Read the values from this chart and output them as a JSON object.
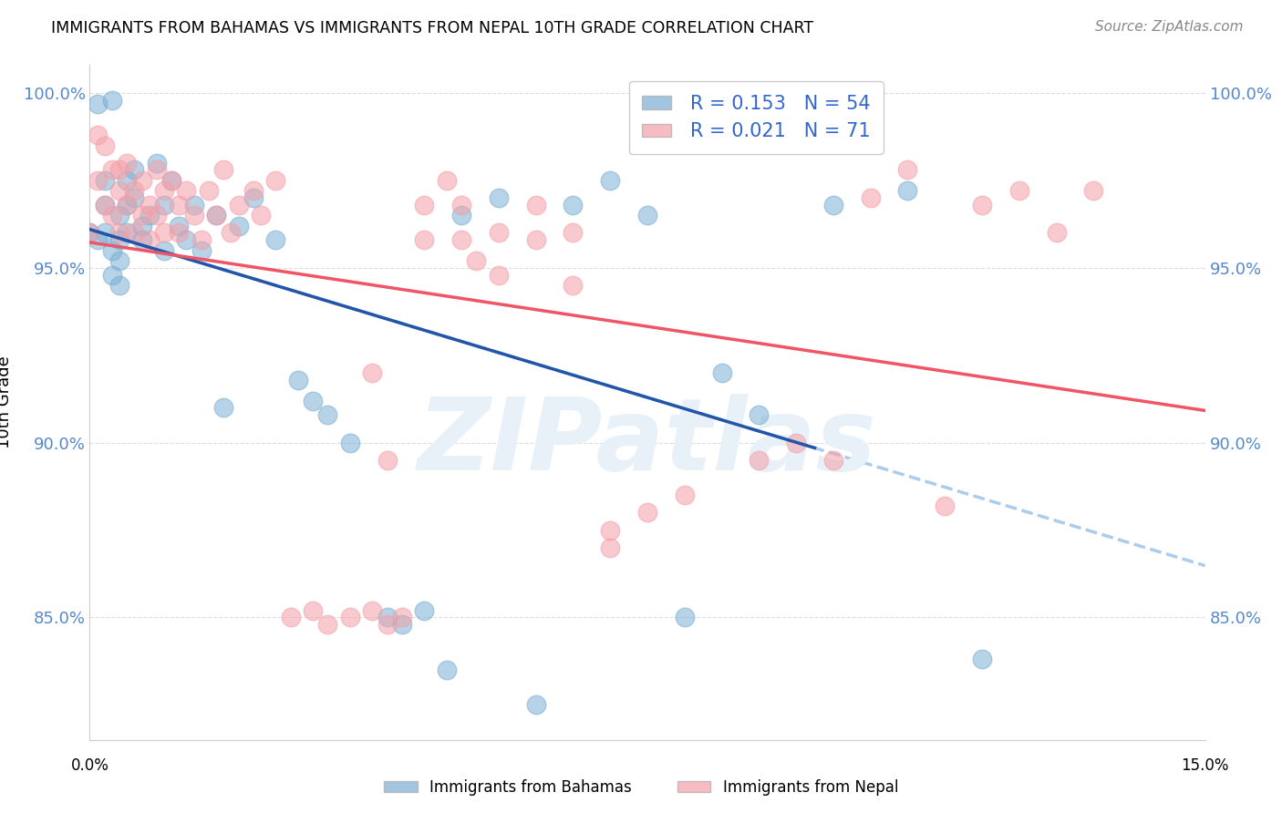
{
  "title": "IMMIGRANTS FROM BAHAMAS VS IMMIGRANTS FROM NEPAL 10TH GRADE CORRELATION CHART",
  "source": "Source: ZipAtlas.com",
  "ylabel": "10th Grade",
  "ytick_labels": [
    "100.0%",
    "95.0%",
    "90.0%",
    "85.0%"
  ],
  "ytick_values": [
    1.0,
    0.95,
    0.9,
    0.85
  ],
  "xlim": [
    0.0,
    0.15
  ],
  "ylim": [
    0.815,
    1.008
  ],
  "legend_blue_r": "R = 0.153",
  "legend_blue_n": "N = 54",
  "legend_pink_r": "R = 0.021",
  "legend_pink_n": "N = 71",
  "blue_color": "#7BAFD4",
  "pink_color": "#F4A0A8",
  "blue_line_color": "#2255AA",
  "pink_line_color": "#EE5566",
  "dashed_color": "#AACCEE",
  "legend_text_color": "#3366CC",
  "right_axis_color": "#5588CC",
  "watermark_text": "ZIPatlas",
  "watermark_color": "#E8F0F8",
  "blue_x": [
    0.0,
    0.001,
    0.001,
    0.002,
    0.002,
    0.002,
    0.003,
    0.003,
    0.003,
    0.004,
    0.004,
    0.004,
    0.004,
    0.005,
    0.005,
    0.005,
    0.006,
    0.006,
    0.007,
    0.007,
    0.008,
    0.009,
    0.01,
    0.01,
    0.011,
    0.012,
    0.013,
    0.014,
    0.015,
    0.017,
    0.018,
    0.02,
    0.022,
    0.025,
    0.028,
    0.03,
    0.032,
    0.035,
    0.04,
    0.042,
    0.045,
    0.048,
    0.05,
    0.055,
    0.06,
    0.065,
    0.07,
    0.075,
    0.08,
    0.085,
    0.09,
    0.1,
    0.11,
    0.12
  ],
  "blue_y": [
    0.96,
    0.997,
    0.958,
    0.975,
    0.968,
    0.96,
    0.998,
    0.955,
    0.948,
    0.965,
    0.958,
    0.952,
    0.945,
    0.975,
    0.968,
    0.96,
    0.978,
    0.97,
    0.962,
    0.958,
    0.965,
    0.98,
    0.968,
    0.955,
    0.975,
    0.962,
    0.958,
    0.968,
    0.955,
    0.965,
    0.91,
    0.962,
    0.97,
    0.958,
    0.918,
    0.912,
    0.908,
    0.9,
    0.85,
    0.848,
    0.852,
    0.835,
    0.965,
    0.97,
    0.825,
    0.968,
    0.975,
    0.965,
    0.85,
    0.92,
    0.908,
    0.968,
    0.972,
    0.838
  ],
  "pink_x": [
    0.0,
    0.001,
    0.001,
    0.002,
    0.002,
    0.003,
    0.003,
    0.004,
    0.004,
    0.004,
    0.005,
    0.005,
    0.006,
    0.006,
    0.007,
    0.007,
    0.008,
    0.008,
    0.009,
    0.009,
    0.01,
    0.01,
    0.011,
    0.012,
    0.012,
    0.013,
    0.014,
    0.015,
    0.016,
    0.017,
    0.018,
    0.019,
    0.02,
    0.022,
    0.023,
    0.025,
    0.027,
    0.03,
    0.032,
    0.035,
    0.038,
    0.04,
    0.042,
    0.045,
    0.048,
    0.05,
    0.052,
    0.055,
    0.06,
    0.065,
    0.07,
    0.075,
    0.08,
    0.09,
    0.095,
    0.1,
    0.105,
    0.11,
    0.115,
    0.12,
    0.125,
    0.13,
    0.135,
    0.038,
    0.04,
    0.045,
    0.05,
    0.055,
    0.06,
    0.065,
    0.07
  ],
  "pink_y": [
    0.96,
    0.988,
    0.975,
    0.985,
    0.968,
    0.978,
    0.965,
    0.972,
    0.96,
    0.978,
    0.98,
    0.968,
    0.972,
    0.96,
    0.975,
    0.965,
    0.968,
    0.958,
    0.978,
    0.965,
    0.972,
    0.96,
    0.975,
    0.968,
    0.96,
    0.972,
    0.965,
    0.958,
    0.972,
    0.965,
    0.978,
    0.96,
    0.968,
    0.972,
    0.965,
    0.975,
    0.85,
    0.852,
    0.848,
    0.85,
    0.852,
    0.848,
    0.85,
    0.968,
    0.975,
    0.958,
    0.952,
    0.948,
    0.958,
    0.945,
    0.875,
    0.88,
    0.885,
    0.895,
    0.9,
    0.895,
    0.97,
    0.978,
    0.882,
    0.968,
    0.972,
    0.96,
    0.972,
    0.92,
    0.895,
    0.958,
    0.968,
    0.96,
    0.968,
    0.96,
    0.87
  ]
}
